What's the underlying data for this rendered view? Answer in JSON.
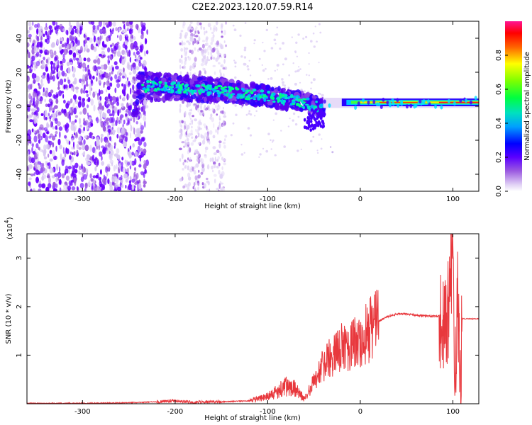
{
  "title": "C2E2.2023.120.07.59.R14",
  "chart_data": [
    {
      "type": "heatmap",
      "title": "C2E2.2023.120.07.59.R14",
      "xlabel": "Height of straight line (km)",
      "ylabel": "Frequency (Hz)",
      "xlim": [
        -360,
        128
      ],
      "ylim": [
        -50,
        50
      ],
      "xticks": [
        -300,
        -200,
        -100,
        0,
        100
      ],
      "yticks": [
        -40,
        -20,
        0,
        20,
        40
      ],
      "colorbar": {
        "label": "Normalized spectral amplitude",
        "range": [
          0.0,
          1.0
        ],
        "ticks": [
          "0.0",
          "0.2",
          "0.4",
          "0.6",
          "0.8"
        ],
        "colors": [
          "#ffffff",
          "#d9c8f0",
          "#9b59e0",
          "#6a00ff",
          "#0000ff",
          "#00bfff",
          "#00ff80",
          "#7fff00",
          "#ffff00",
          "#ff8000",
          "#ff0000",
          "#ff1493"
        ]
      },
      "ridge": {
        "x": [
          -240,
          -200,
          -150,
          -100,
          -60,
          -40,
          -20,
          0,
          50,
          100,
          128
        ],
        "y": [
          12,
          11,
          9,
          6,
          2,
          -1,
          2,
          2,
          2,
          2,
          3
        ]
      }
    },
    {
      "type": "line",
      "xlabel": "Height of straight line (km)",
      "ylabel": "SNR (10 * v/v)",
      "scale_label": "(x10",
      "scale_exponent": "4",
      "scale_suffix": ")",
      "xlim": [
        -360,
        128
      ],
      "ylim": [
        0,
        3.5
      ],
      "xticks": [
        -300,
        -200,
        -100,
        0,
        100
      ],
      "yticks": [
        1,
        2,
        3
      ],
      "color": "#e8383d",
      "x": [
        -360,
        -300,
        -250,
        -220,
        -200,
        -180,
        -150,
        -120,
        -100,
        -90,
        -80,
        -70,
        -60,
        -50,
        -40,
        -30,
        -20,
        -10,
        0,
        10,
        20,
        30,
        40,
        50,
        60,
        80,
        90,
        95,
        100,
        102,
        105,
        108,
        110,
        115,
        128
      ],
      "y": [
        0.01,
        0.01,
        0.02,
        0.04,
        0.06,
        0.03,
        0.04,
        0.06,
        0.15,
        0.25,
        0.35,
        0.3,
        0.1,
        0.45,
        0.8,
        1.0,
        1.15,
        1.25,
        1.35,
        1.5,
        1.7,
        1.8,
        1.85,
        1.85,
        1.82,
        1.8,
        1.8,
        1.9,
        3.3,
        0.1,
        2.5,
        0.2,
        1.75,
        1.75,
        1.75
      ]
    }
  ]
}
